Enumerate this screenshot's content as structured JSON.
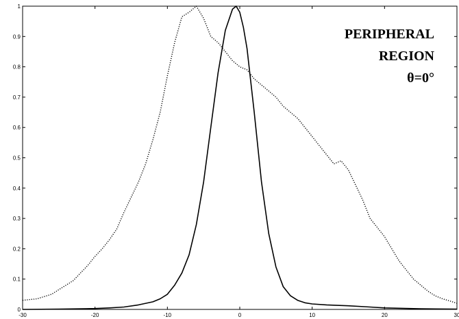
{
  "chart_data": {
    "type": "line",
    "title": "",
    "xlabel": "",
    "ylabel": "",
    "xlim": [
      -30,
      30
    ],
    "ylim": [
      0,
      1
    ],
    "grid": false,
    "legend": "none",
    "xticks": [
      -30,
      -20,
      -10,
      0,
      10,
      20,
      30
    ],
    "yticks": [
      0,
      0.1,
      0.2,
      0.3,
      0.4,
      0.5,
      0.6,
      0.7,
      0.8,
      0.9,
      1
    ],
    "xtick_labels": [
      "-30",
      "-20",
      "-10",
      "0",
      "10",
      "20",
      "30"
    ],
    "ytick_labels": [
      "0",
      "0.1",
      "0.2",
      "0.3",
      "0.4",
      "0.5",
      "0.6",
      "0.7",
      "0.8",
      "0.9",
      "1"
    ],
    "annotation": [
      "PERIPHERAL",
      "REGION",
      "θ=0°"
    ],
    "series": [
      {
        "style": "dotted",
        "color": "#000000",
        "x": [
          -30,
          -28,
          -26,
          -25,
          -24,
          -23,
          -22,
          -21,
          -20,
          -19,
          -18,
          -17,
          -16,
          -15,
          -14,
          -13,
          -12,
          -11,
          -10,
          -9,
          -8,
          -7,
          -6,
          -5,
          -4,
          -3,
          -2,
          -1,
          0,
          1,
          2,
          3,
          4,
          5,
          6,
          7,
          8,
          9,
          10,
          11,
          12,
          13,
          14,
          15,
          16,
          17,
          18,
          19,
          20,
          21,
          22,
          23,
          24,
          25,
          26,
          27,
          28,
          29,
          30
        ],
        "y": [
          0.03,
          0.035,
          0.05,
          0.065,
          0.08,
          0.095,
          0.12,
          0.145,
          0.175,
          0.2,
          0.23,
          0.265,
          0.32,
          0.37,
          0.42,
          0.48,
          0.56,
          0.65,
          0.77,
          0.88,
          0.965,
          0.98,
          1.0,
          0.96,
          0.9,
          0.88,
          0.85,
          0.82,
          0.8,
          0.79,
          0.76,
          0.74,
          0.72,
          0.7,
          0.67,
          0.65,
          0.63,
          0.6,
          0.57,
          0.54,
          0.51,
          0.48,
          0.49,
          0.46,
          0.41,
          0.36,
          0.3,
          0.27,
          0.24,
          0.2,
          0.16,
          0.13,
          0.1,
          0.08,
          0.06,
          0.045,
          0.035,
          0.028,
          0.02
        ]
      },
      {
        "style": "solid",
        "color": "#000000",
        "x": [
          -30,
          -25,
          -20,
          -18,
          -16,
          -14,
          -12,
          -11,
          -10,
          -9,
          -8,
          -7,
          -6,
          -5,
          -4,
          -3,
          -2,
          -1,
          -0.5,
          0,
          0.5,
          1,
          2,
          3,
          4,
          5,
          6,
          7,
          8,
          9,
          10,
          12,
          15,
          18,
          20,
          25,
          30
        ],
        "y": [
          0,
          0.001,
          0.003,
          0.005,
          0.008,
          0.015,
          0.025,
          0.035,
          0.05,
          0.08,
          0.12,
          0.18,
          0.28,
          0.42,
          0.6,
          0.78,
          0.92,
          0.99,
          1.0,
          0.98,
          0.93,
          0.86,
          0.65,
          0.42,
          0.25,
          0.14,
          0.075,
          0.045,
          0.03,
          0.022,
          0.018,
          0.015,
          0.012,
          0.008,
          0.005,
          0.002,
          0.001
        ]
      }
    ]
  }
}
